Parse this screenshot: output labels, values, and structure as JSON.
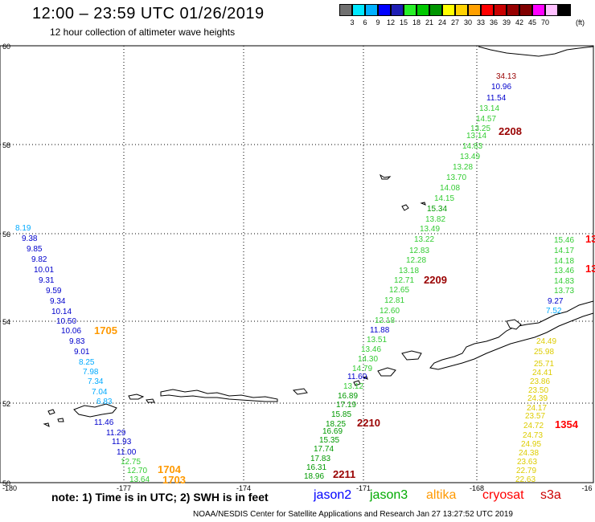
{
  "title": "12:00 – 23:59 UTC 01/26/2019",
  "subtitle": "12 hour collection of altimeter wave heights",
  "legend": {
    "colors": [
      "#707070",
      "#00e8ff",
      "#00b0ff",
      "#0000ff",
      "#1e1eb4",
      "#28f028",
      "#00c800",
      "#009600",
      "#ffff00",
      "#ffd200",
      "#ffa000",
      "#ff0000",
      "#c80000",
      "#960000",
      "#800000",
      "#ff00ff",
      "#ffc0ff",
      "#000000"
    ],
    "labels": [
      "3",
      "6",
      "9",
      "12",
      "15",
      "18",
      "21",
      "24",
      "27",
      "30",
      "33",
      "36",
      "39",
      "42",
      "45",
      "70"
    ],
    "unit": "(ft)"
  },
  "axes": {
    "lat_labels": [
      "60",
      "58",
      "56",
      "54",
      "52",
      "50"
    ],
    "lon_labels": [
      "-180",
      "-177",
      "-174",
      "-171",
      "-168",
      "-16"
    ]
  },
  "passes": [
    {
      "time": "1705",
      "color": "#ff9900"
    },
    {
      "time": "1704",
      "color": "#ff9900"
    },
    {
      "time": "1703",
      "color": "#ff9900"
    },
    {
      "time": "2208",
      "color": "#990000"
    },
    {
      "time": "2209",
      "color": "#990000"
    },
    {
      "time": "2210",
      "color": "#990000"
    },
    {
      "time": "2211",
      "color": "#990000"
    },
    {
      "time": "1354",
      "color": "#ff0000"
    },
    {
      "time": "13",
      "color": "#ff0000"
    },
    {
      "time": "13",
      "color": "#ff0000"
    }
  ],
  "tracks": {
    "west": [
      {
        "v": "8.19",
        "c": "#00aaff"
      },
      {
        "v": "9.38",
        "c": "#0000cc"
      },
      {
        "v": "9.85",
        "c": "#0000cc"
      },
      {
        "v": "9.82",
        "c": "#0000cc"
      },
      {
        "v": "10.01",
        "c": "#0000cc"
      },
      {
        "v": "9.31",
        "c": "#0000cc"
      },
      {
        "v": "9.59",
        "c": "#0000cc"
      },
      {
        "v": "9.34",
        "c": "#0000cc"
      },
      {
        "v": "10.14",
        "c": "#0000cc"
      },
      {
        "v": "10.50",
        "c": "#0000cc"
      },
      {
        "v": "10.06",
        "c": "#0000cc"
      },
      {
        "v": "9.83",
        "c": "#0000cc"
      },
      {
        "v": "9.01",
        "c": "#0000cc"
      },
      {
        "v": "8.25",
        "c": "#00aaff"
      },
      {
        "v": "7.98",
        "c": "#00aaff"
      },
      {
        "v": "7.34",
        "c": "#00aaff"
      },
      {
        "v": "7.04",
        "c": "#00aaff"
      },
      {
        "v": "6.83",
        "c": "#00aaff"
      },
      {
        "v": "11.46",
        "c": "#0000cc"
      },
      {
        "v": "11.29",
        "c": "#0000cc"
      },
      {
        "v": "11.93",
        "c": "#0000cc"
      },
      {
        "v": "11.00",
        "c": "#0000cc"
      },
      {
        "v": "12.75",
        "c": "#33cc33"
      },
      {
        "v": "12.70",
        "c": "#33cc33"
      },
      {
        "v": "13.64",
        "c": "#33cc33"
      }
    ],
    "middle": [
      {
        "v": "34.13",
        "c": "#990000"
      },
      {
        "v": "10.96",
        "c": "#0000cc"
      },
      {
        "v": "11.54",
        "c": "#0000cc"
      },
      {
        "v": "13.14",
        "c": "#33cc33"
      },
      {
        "v": "14.57",
        "c": "#33cc33"
      },
      {
        "v": "13.25",
        "c": "#33cc33"
      },
      {
        "v": "13.14",
        "c": "#33cc33"
      },
      {
        "v": "14.83",
        "c": "#33cc33"
      },
      {
        "v": "13.49",
        "c": "#33cc33"
      },
      {
        "v": "13.28",
        "c": "#33cc33"
      },
      {
        "v": "13.70",
        "c": "#33cc33"
      },
      {
        "v": "14.08",
        "c": "#33cc33"
      },
      {
        "v": "14.15",
        "c": "#33cc33"
      },
      {
        "v": "15.34",
        "c": "#009900"
      },
      {
        "v": "13.82",
        "c": "#33cc33"
      },
      {
        "v": "13.49",
        "c": "#33cc33"
      },
      {
        "v": "13.22",
        "c": "#33cc33"
      },
      {
        "v": "12.83",
        "c": "#33cc33"
      },
      {
        "v": "12.28",
        "c": "#33cc33"
      },
      {
        "v": "13.18",
        "c": "#33cc33"
      },
      {
        "v": "12.71",
        "c": "#33cc33"
      },
      {
        "v": "12.65",
        "c": "#33cc33"
      },
      {
        "v": "12.81",
        "c": "#33cc33"
      },
      {
        "v": "12.60",
        "c": "#33cc33"
      },
      {
        "v": "12.18",
        "c": "#33cc33"
      },
      {
        "v": "11.88",
        "c": "#0000cc"
      },
      {
        "v": "13.51",
        "c": "#33cc33"
      },
      {
        "v": "13.46",
        "c": "#33cc33"
      },
      {
        "v": "14.30",
        "c": "#33cc33"
      },
      {
        "v": "14.79",
        "c": "#33cc33"
      },
      {
        "v": "11.60",
        "c": "#0000cc"
      },
      {
        "v": "13.12",
        "c": "#33cc33"
      },
      {
        "v": "16.89",
        "c": "#009900"
      },
      {
        "v": "17.19",
        "c": "#009900"
      },
      {
        "v": "15.85",
        "c": "#009900"
      },
      {
        "v": "18.25",
        "c": "#009900"
      },
      {
        "v": "16.69",
        "c": "#009900"
      },
      {
        "v": "15.35",
        "c": "#009900"
      },
      {
        "v": "17.74",
        "c": "#009900"
      },
      {
        "v": "17.83",
        "c": "#009900"
      },
      {
        "v": "16.31",
        "c": "#009900"
      },
      {
        "v": "18.96",
        "c": "#009900"
      }
    ],
    "east": [
      {
        "v": "15.46",
        "c": "#33cc33"
      },
      {
        "v": "14.17",
        "c": "#33cc33"
      },
      {
        "v": "14.18",
        "c": "#33cc33"
      },
      {
        "v": "13.46",
        "c": "#33cc33"
      },
      {
        "v": "14.83",
        "c": "#33cc33"
      },
      {
        "v": "13.73",
        "c": "#33cc33"
      },
      {
        "v": "9.27",
        "c": "#0000cc"
      },
      {
        "v": "7.52",
        "c": "#00aaff"
      },
      {
        "v": "24.49",
        "c": "#ddcc00"
      },
      {
        "v": "25.98",
        "c": "#ddcc00"
      },
      {
        "v": "25.71",
        "c": "#ddcc00"
      },
      {
        "v": "24.41",
        "c": "#ddcc00"
      },
      {
        "v": "23.86",
        "c": "#ddcc00"
      },
      {
        "v": "23.50",
        "c": "#ddcc00"
      },
      {
        "v": "24.39",
        "c": "#ddcc00"
      },
      {
        "v": "24.17",
        "c": "#ddcc00"
      },
      {
        "v": "23.57",
        "c": "#ddcc00"
      },
      {
        "v": "24.72",
        "c": "#ddcc00"
      },
      {
        "v": "24.73",
        "c": "#ddcc00"
      },
      {
        "v": "24.95",
        "c": "#ddcc00"
      },
      {
        "v": "24.38",
        "c": "#ddcc00"
      },
      {
        "v": "23.63",
        "c": "#ddcc00"
      },
      {
        "v": "22.79",
        "c": "#ddcc00"
      },
      {
        "v": "22.63",
        "c": "#ddcc00"
      }
    ]
  },
  "footer": {
    "note": "note:  1) Time is in UTC;  2) SWH is in feet",
    "satellites": [
      {
        "name": "jason2",
        "color": "#0000ff"
      },
      {
        "name": "jason3",
        "color": "#00aa00"
      },
      {
        "name": "altika",
        "color": "#ff9900"
      },
      {
        "name": "cryosat",
        "color": "#ff0000"
      },
      {
        "name": "s3a",
        "color": "#cc0000"
      }
    ],
    "credit": "NOAA/NESDIS Center for Satellite Applications and Research   Jan 27 13:27:52 UTC 2019"
  }
}
